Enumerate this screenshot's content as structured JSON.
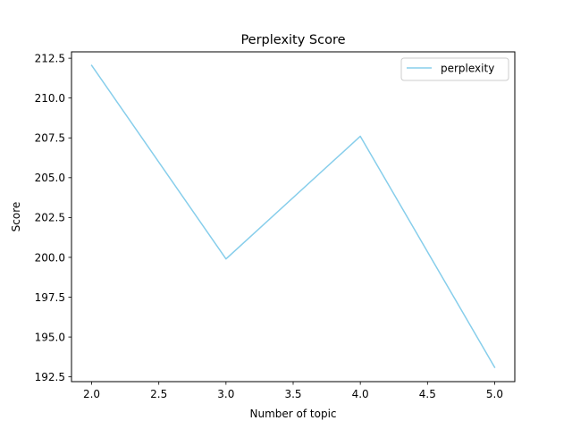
{
  "chart_data": {
    "type": "line",
    "title": "Perplexity Score",
    "xlabel": "Number of topic",
    "ylabel": "Score",
    "x": [
      2,
      3,
      4,
      5
    ],
    "series": [
      {
        "name": "perplexity",
        "color": "#87ceeb",
        "values": [
          212.05,
          199.9,
          207.6,
          193.1
        ]
      }
    ],
    "xlim": [
      1.85,
      5.15
    ],
    "ylim": [
      192.2,
      212.9
    ],
    "xticks": [
      2.0,
      2.5,
      3.0,
      3.5,
      4.0,
      4.5,
      5.0
    ],
    "xtick_labels": [
      "2.0",
      "2.5",
      "3.0",
      "3.5",
      "4.0",
      "4.5",
      "5.0"
    ],
    "yticks": [
      192.5,
      195.0,
      197.5,
      200.0,
      202.5,
      205.0,
      207.5,
      210.0,
      212.5
    ],
    "ytick_labels": [
      "192.5",
      "195.0",
      "197.5",
      "200.0",
      "202.5",
      "205.0",
      "207.5",
      "210.0",
      "212.5"
    ],
    "grid": false,
    "legend_position": "top-right"
  }
}
